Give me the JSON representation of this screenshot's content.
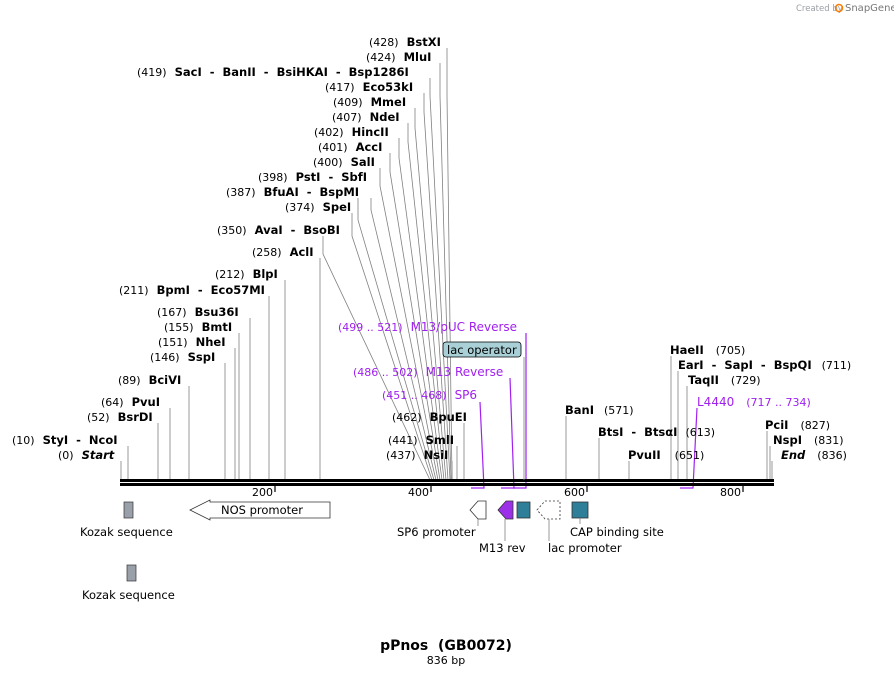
{
  "credit": {
    "created_by": "Created by",
    "brand": "SnapGene"
  },
  "map": {
    "title": "pPnos  (GB0072)",
    "length": "836 bp",
    "start_label": "Start",
    "start_pos": "(0)",
    "end_label": "End",
    "end_pos": "(836)",
    "ruler": {
      "bp_total": 836,
      "ticks": [
        "200",
        "400",
        "600",
        "800"
      ]
    }
  },
  "sites": [
    {
      "pos": "(428)",
      "name": "BstXI"
    },
    {
      "pos": "(424)",
      "name": "MluI"
    },
    {
      "pos": "(419)",
      "name": "SacI  -  BanII  -  BsiHKAI  -  Bsp1286I"
    },
    {
      "pos": "(417)",
      "name": "Eco53kI"
    },
    {
      "pos": "(409)",
      "name": "MmeI"
    },
    {
      "pos": "(407)",
      "name": "NdeI"
    },
    {
      "pos": "(402)",
      "name": "HincII"
    },
    {
      "pos": "(401)",
      "name": "AccI"
    },
    {
      "pos": "(400)",
      "name": "SalI"
    },
    {
      "pos": "(398)",
      "name": "PstI  -  SbfI"
    },
    {
      "pos": "(387)",
      "name": "BfuAI  -  BspMI"
    },
    {
      "pos": "(374)",
      "name": "SpeI"
    },
    {
      "pos": "(350)",
      "name": "AvaI  -  BsoBI"
    },
    {
      "pos": "(258)",
      "name": "AclI"
    },
    {
      "pos": "(212)",
      "name": "BlpI"
    },
    {
      "pos": "(211)",
      "name": "BpmI  -  Eco57MI"
    },
    {
      "pos": "(167)",
      "name": "Bsu36I"
    },
    {
      "pos": "(155)",
      "name": "BmtI"
    },
    {
      "pos": "(151)",
      "name": "NheI"
    },
    {
      "pos": "(146)",
      "name": "SspI"
    },
    {
      "pos": "(89)",
      "name": "BciVI"
    },
    {
      "pos": "(64)",
      "name": "PvuI"
    },
    {
      "pos": "(52)",
      "name": "BsrDI"
    },
    {
      "pos": "(10)",
      "name": "StyI  -  NcoI"
    },
    {
      "pos": "(462)",
      "name": "BpuEI"
    },
    {
      "pos": "(441)",
      "name": "SmlI"
    },
    {
      "pos": "(437)",
      "name": "NsiI"
    },
    {
      "pos": "(571)",
      "name": "BanI"
    },
    {
      "pos": "(613)",
      "name": "BtsI  -  BtsαI"
    },
    {
      "pos": "(651)",
      "name": "PvuII"
    },
    {
      "pos": "(705)",
      "name": "HaeII"
    },
    {
      "pos": "(711)",
      "name": "EarI  -  SapI  -  BspQI"
    },
    {
      "pos": "(729)",
      "name": "TaqII"
    },
    {
      "pos": "(827)",
      "name": "PciI"
    },
    {
      "pos": "(831)",
      "name": "NspI"
    }
  ],
  "primers": [
    {
      "range": "(499 .. 521)",
      "name": "M13/pUC Reverse"
    },
    {
      "range": "(486 .. 502)",
      "name": "M13 Reverse"
    },
    {
      "range": "(451 .. 468)",
      "name": "SP6"
    },
    {
      "range": "(717 .. 734)",
      "name": "L4440"
    }
  ],
  "features": {
    "lac_operator": "lac operator",
    "nos_promoter": "NOS promoter",
    "kozak_1": "Kozak sequence",
    "kozak_2": "Kozak sequence",
    "sp6_promoter": "SP6 promoter",
    "m13_rev": "M13 rev",
    "lac_promoter": "lac promoter",
    "cap_site": "CAP binding site"
  },
  "colors": {
    "primer": "#a020f0",
    "operator_fill": "#a8d0d6",
    "cap_fill": "#2f7f98",
    "kozak_fill": "#9aa0aa",
    "arrow_fill": "#ffffff",
    "m13_fill": "#9b30e8",
    "line": "#808080"
  }
}
